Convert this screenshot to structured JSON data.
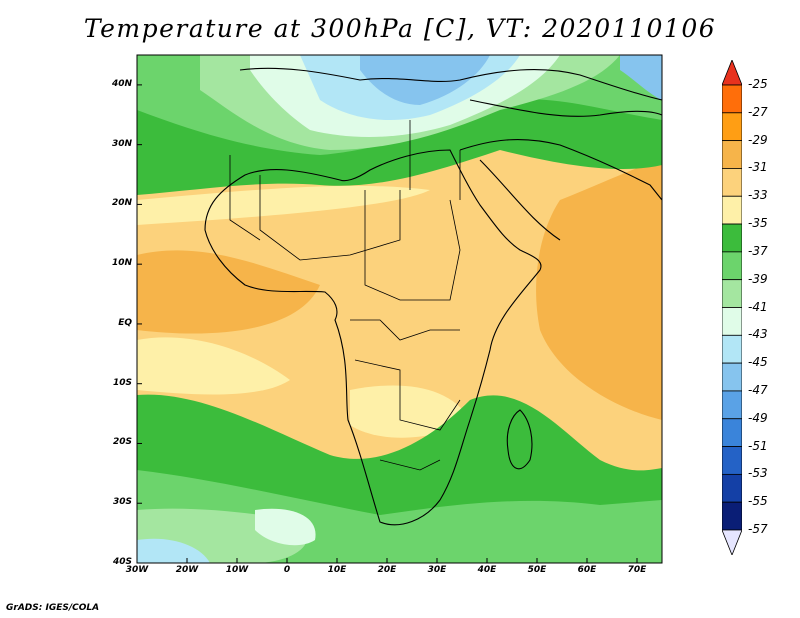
{
  "title": "Temperature at 300hPa [C], VT: 2020110106",
  "credit": "GrADS: IGES/COLA",
  "map": {
    "projection": "lat-lon",
    "lon_range": [
      -30,
      75
    ],
    "lat_range": [
      -40,
      45
    ],
    "lat_ticks": [
      {
        "value": 40,
        "label": "40N"
      },
      {
        "value": 30,
        "label": "30N"
      },
      {
        "value": 20,
        "label": "20N"
      },
      {
        "value": 10,
        "label": "10N"
      },
      {
        "value": 0,
        "label": "EQ"
      },
      {
        "value": -10,
        "label": "10S"
      },
      {
        "value": -20,
        "label": "20S"
      },
      {
        "value": -30,
        "label": "30S"
      },
      {
        "value": -40,
        "label": "40S"
      }
    ],
    "lon_ticks": [
      {
        "value": -30,
        "label": "30W"
      },
      {
        "value": -20,
        "label": "20W"
      },
      {
        "value": -10,
        "label": "10W"
      },
      {
        "value": 0,
        "label": "0"
      },
      {
        "value": 10,
        "label": "10E"
      },
      {
        "value": 20,
        "label": "20E"
      },
      {
        "value": 30,
        "label": "30E"
      },
      {
        "value": 40,
        "label": "40E"
      },
      {
        "value": 50,
        "label": "50E"
      },
      {
        "value": 60,
        "label": "60E"
      },
      {
        "value": 70,
        "label": "70E"
      }
    ]
  },
  "colorbar": {
    "labels": [
      "-25",
      "-27",
      "-29",
      "-31",
      "-33",
      "-35",
      "-37",
      "-39",
      "-41",
      "-43",
      "-45",
      "-47",
      "-49",
      "-51",
      "-53",
      "-55",
      "-57"
    ],
    "colors": [
      "#e8321e",
      "#ff6e0a",
      "#ff9e14",
      "#f6b44a",
      "#fcd27c",
      "#fef0a8",
      "#3cbc3c",
      "#6cd46c",
      "#a4e6a0",
      "#e0fce8",
      "#b2e6f6",
      "#86c4ee",
      "#5aa2e6",
      "#3a84da",
      "#2462c6",
      "#1440a6",
      "#0a1e76",
      "#e6e6ff"
    ]
  }
}
